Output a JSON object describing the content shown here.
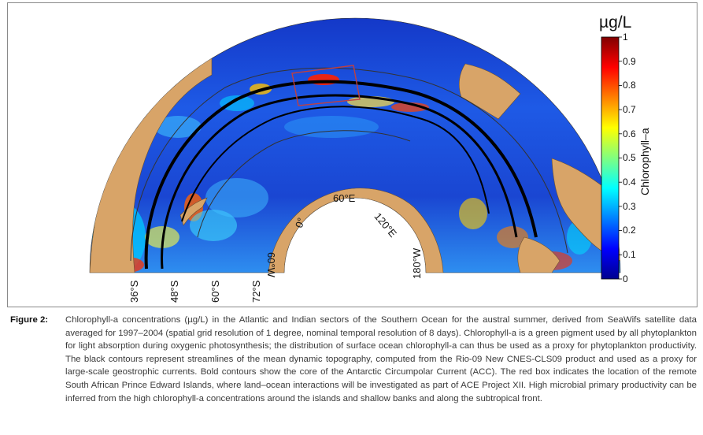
{
  "figure": {
    "colorbar": {
      "unit": "µg/L",
      "title": "Chlorophyll–a",
      "ticks": [
        "1",
        "0.9",
        "0.8",
        "0.7",
        "0.6",
        "0.5",
        "0.4",
        "0.3",
        "0.2",
        "0.1",
        "0"
      ],
      "range": [
        0,
        1
      ],
      "colors": [
        "#00008f",
        "#0000ff",
        "#0080ff",
        "#00ffff",
        "#80ff80",
        "#ffff00",
        "#ff8000",
        "#ff0000",
        "#800000"
      ]
    },
    "lat_labels": [
      "36°S",
      "48°S",
      "60°S",
      "72°S"
    ],
    "lon_labels": {
      "lon_0": "0°",
      "lon_60e": "60°E",
      "lon_120e": "120°E",
      "lon_60w": "60°W",
      "lon_180w": "180°W"
    },
    "colors": {
      "ocean_mid": "#1e4fd8",
      "land": "#d8a468",
      "contour": "#000000",
      "box": "#c04040"
    }
  },
  "caption": {
    "label": "Figure 2:",
    "text": "Chlorophyll-a concentrations (µg/L) in the Atlantic and Indian sectors of the Southern Ocean for the austral summer, derived from SeaWifs satellite data averaged for 1997–2004 (spatial grid resolution of 1 degree, nominal temporal resolution of 8 days). Chlorophyll-a is a green pigment used by all phytoplankton for light absorption during oxygenic photosynthesis; the distribution of surface ocean chlorophyll-a can thus be used as a proxy for phytoplankton productivity. The black contours represent streamlines of the mean dynamic topography, computed from the Rio-09 New CNES-CLS09 product and used as a proxy for large-scale geostrophic currents. Bold contours show the core of the Antarctic Circumpolar Current (ACC). The red box indicates the location of the remote South African Prince Edward Islands, where land–ocean interactions will be investigated as part of ACE Project XII. High microbial primary productivity can be inferred from the high chlorophyll-a concentrations around the islands and shallow banks and along the subtropical front."
  }
}
